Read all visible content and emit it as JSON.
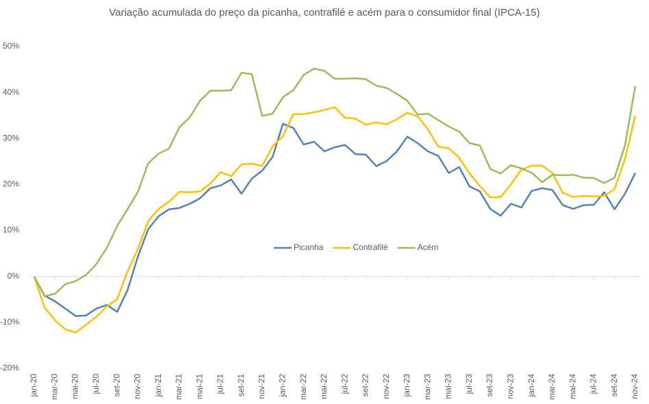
{
  "chart_data": {
    "type": "line",
    "title": "Variação acumulada do preço da picanha, contrafilé e acém para o consumidor final (IPCA-15)",
    "categories": [
      "jan-20",
      null,
      "mar-20",
      null,
      "mai-20",
      null,
      "jul-20",
      null,
      "set-20",
      null,
      "nov-20",
      null,
      "jan-21",
      null,
      "mar-21",
      null,
      "mai-21",
      null,
      "jul-21",
      null,
      "set-21",
      null,
      "nov-21",
      null,
      "jan-22",
      null,
      "mar-22",
      null,
      "mai-22",
      null,
      "jul-22",
      null,
      "set-22",
      null,
      "nov-22",
      null,
      "jan-23",
      null,
      "mar-23",
      null,
      "mai-23",
      null,
      "jul-23",
      null,
      "set-23",
      null,
      "nov-23",
      null,
      "jan-24",
      null,
      "mar-24",
      null,
      "mai-24",
      null,
      "jul-24",
      null,
      "set-24",
      null,
      "nov-24"
    ],
    "series": [
      {
        "name": "Picanha",
        "color": "#4f81bd",
        "values": [
          0,
          -4.2,
          -5.4,
          -7,
          -8.6,
          -8.5,
          -7,
          -6.2,
          -7.7,
          -3,
          4.3,
          10.3,
          13.1,
          14.6,
          14.9,
          15.8,
          17,
          19.2,
          19.8,
          21.1,
          18,
          21.3,
          23,
          26,
          33.2,
          32.3,
          28.7,
          29.3,
          27.2,
          28.1,
          28.6,
          26.6,
          26.5,
          24,
          25.1,
          27.2,
          30.4,
          29,
          27.2,
          26.2,
          22.5,
          23.8,
          19.6,
          18.5,
          14.7,
          13.2,
          15.8,
          15,
          18.6,
          19.2,
          18.8,
          15.5,
          14.7,
          15.5,
          15.6,
          18.3,
          14.6,
          18,
          22.5
        ]
      },
      {
        "name": "Contrafilé",
        "color": "#ffc000",
        "values": [
          0,
          -6.8,
          -9.5,
          -11.5,
          -12.2,
          -10.5,
          -8.8,
          -6.5,
          -5,
          1,
          6,
          12,
          14.7,
          16.2,
          18.4,
          18.3,
          18.5,
          20.2,
          22.7,
          21.8,
          24.4,
          24.5,
          24,
          28.3,
          30.5,
          35.3,
          35.3,
          35.7,
          36.2,
          36.8,
          34.5,
          34.3,
          33,
          33.5,
          33.1,
          34.2,
          35.6,
          34.8,
          32,
          28.2,
          27.9,
          25.8,
          22.4,
          19.7,
          17.2,
          17.3,
          20,
          23.2,
          24.1,
          24.1,
          22.5,
          18.2,
          17.3,
          17.5,
          17.4,
          17.5,
          19,
          25.5,
          35
        ]
      },
      {
        "name": "Acém",
        "color": "#9bbb59",
        "values": [
          0,
          -4.3,
          -3.8,
          -1.7,
          -1,
          0.3,
          2.7,
          6.2,
          11,
          14.6,
          18.4,
          24.6,
          26.7,
          27.8,
          32.4,
          34.6,
          38.2,
          40.4,
          40.4,
          40.5,
          44.3,
          44,
          34.9,
          35.4,
          39,
          40.5,
          43.8,
          45.2,
          44.7,
          43,
          43,
          43.1,
          42.9,
          41.5,
          41,
          39.7,
          38.2,
          35.2,
          35.4,
          34,
          32.6,
          31.5,
          29,
          28.5,
          23.4,
          22.4,
          24.2,
          23.5,
          22.6,
          20.5,
          22.1,
          22,
          22.1,
          21.5,
          21.4,
          20.3,
          21.5,
          28.5,
          41.4
        ]
      }
    ],
    "ylim": [
      -20,
      50
    ],
    "yticks": [
      {
        "value": -20,
        "label": "-20%"
      },
      {
        "value": -10,
        "label": "-10%"
      },
      {
        "value": 0,
        "label": "0%"
      },
      {
        "value": 10,
        "label": "10%"
      },
      {
        "value": 20,
        "label": "20%"
      },
      {
        "value": 30,
        "label": "30%"
      },
      {
        "value": 40,
        "label": "40%"
      },
      {
        "value": 50,
        "label": "50%"
      }
    ],
    "grid": false,
    "legend": "center"
  }
}
